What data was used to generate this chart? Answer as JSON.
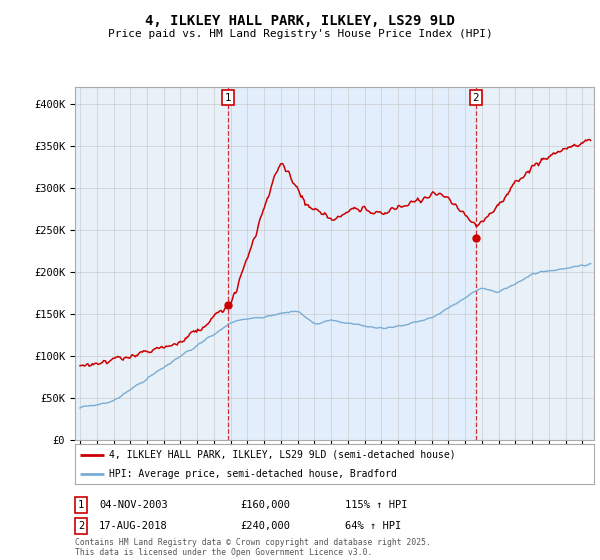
{
  "title": "4, ILKLEY HALL PARK, ILKLEY, LS29 9LD",
  "subtitle": "Price paid vs. HM Land Registry's House Price Index (HPI)",
  "title_fontsize": 10,
  "subtitle_fontsize": 8,
  "ylim": [
    0,
    420000
  ],
  "yticks": [
    0,
    50000,
    100000,
    150000,
    200000,
    250000,
    300000,
    350000,
    400000
  ],
  "ytick_labels": [
    "£0",
    "£50K",
    "£100K",
    "£150K",
    "£200K",
    "£250K",
    "£300K",
    "£350K",
    "£400K"
  ],
  "red_line_color": "#cc0000",
  "blue_line_color": "#7aadd4",
  "grid_color": "#cccccc",
  "background_color": "#dce8f5",
  "background_color2": "#e8f0f8",
  "purchase1_date": "04-NOV-2003",
  "purchase1_price": 160000,
  "purchase1_hpi": "115% ↑ HPI",
  "purchase2_date": "17-AUG-2018",
  "purchase2_price": 240000,
  "purchase2_hpi": "64% ↑ HPI",
  "legend_line1": "4, ILKLEY HALL PARK, ILKLEY, LS29 9LD (semi-detached house)",
  "legend_line2": "HPI: Average price, semi-detached house, Bradford",
  "footer": "Contains HM Land Registry data © Crown copyright and database right 2025.\nThis data is licensed under the Open Government Licence v3.0.",
  "vline1_x": 2003.84,
  "vline2_x": 2018.63,
  "xlim_left": 1994.7,
  "xlim_right": 2025.7
}
